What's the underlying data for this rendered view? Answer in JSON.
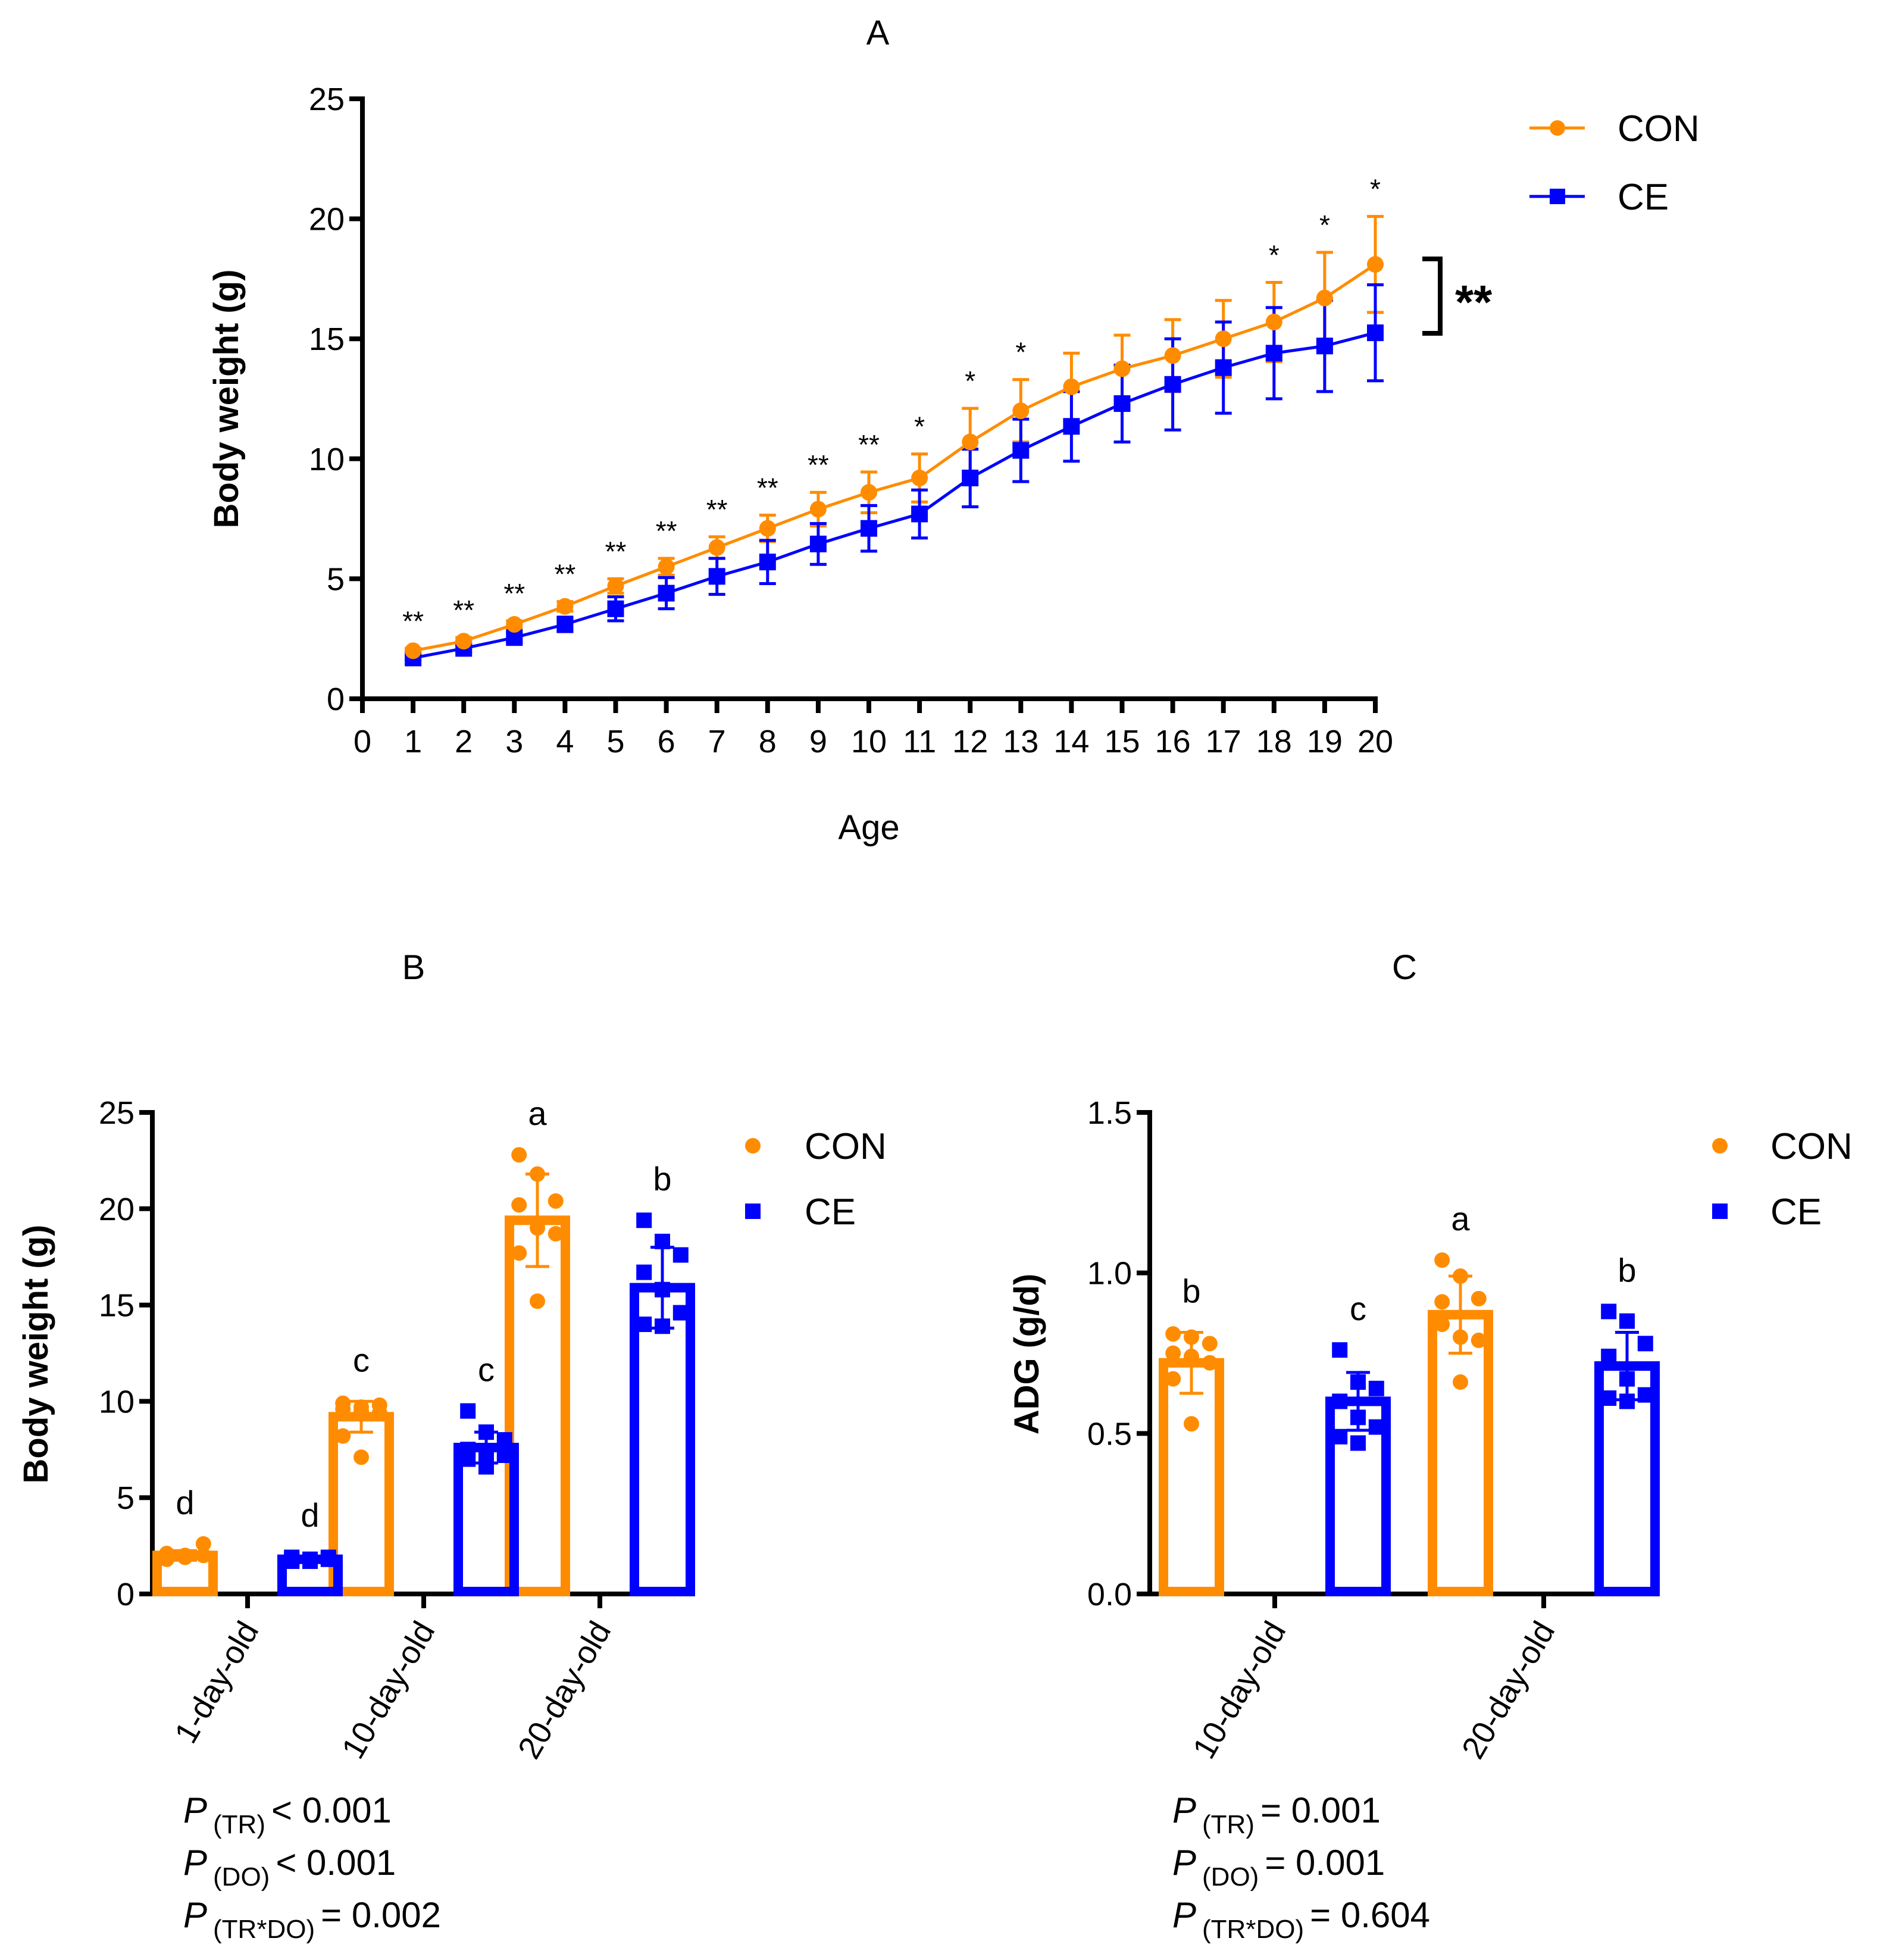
{
  "colors": {
    "CON": "#FF8C00",
    "CE": "#0000FF",
    "axis": "#000000"
  },
  "chart_data": [
    {
      "panel": "A",
      "type": "line",
      "title": "A",
      "xlabel": "Age",
      "ylabel": "Body weight (g)",
      "xlim": [
        0,
        20
      ],
      "ylim": [
        0,
        25
      ],
      "x_ticks": [
        0,
        1,
        2,
        3,
        4,
        5,
        6,
        7,
        8,
        9,
        10,
        11,
        12,
        13,
        14,
        15,
        16,
        17,
        18,
        19,
        20
      ],
      "y_ticks": [
        0,
        5,
        10,
        15,
        20,
        25
      ],
      "grid": false,
      "legend": {
        "placement": "top-right",
        "entries": [
          "CON",
          "CE"
        ]
      },
      "x": [
        1,
        2,
        3,
        4,
        5,
        6,
        7,
        8,
        9,
        10,
        11,
        12,
        13,
        14,
        15,
        16,
        17,
        18,
        19,
        20
      ],
      "series": [
        {
          "name": "CON",
          "marker": "circle",
          "values": [
            2.0,
            2.4,
            3.1,
            3.85,
            4.7,
            5.5,
            6.3,
            7.1,
            7.9,
            8.6,
            9.2,
            10.7,
            12.0,
            13.0,
            13.75,
            14.3,
            15.0,
            15.7,
            16.7,
            18.1
          ],
          "error": [
            0.1,
            0.15,
            0.15,
            0.2,
            0.3,
            0.35,
            0.45,
            0.55,
            0.7,
            0.85,
            1.0,
            1.4,
            1.3,
            1.4,
            1.4,
            1.5,
            1.6,
            1.65,
            1.9,
            2.0
          ]
        },
        {
          "name": "CE",
          "marker": "square",
          "values": [
            1.7,
            2.1,
            2.55,
            3.1,
            3.75,
            4.4,
            5.1,
            5.7,
            6.45,
            7.1,
            7.7,
            9.2,
            10.35,
            11.35,
            12.3,
            13.1,
            13.8,
            14.4,
            14.7,
            15.25
          ],
          "error": [
            0.1,
            0.15,
            0.2,
            0.3,
            0.5,
            0.65,
            0.75,
            0.9,
            0.85,
            0.95,
            1.0,
            1.2,
            1.3,
            1.45,
            1.6,
            1.9,
            1.9,
            1.9,
            1.9,
            2.0
          ]
        }
      ],
      "annotations": [
        "**",
        "**",
        "**",
        "**",
        "**",
        "**",
        "**",
        "**",
        "**",
        "**",
        "*",
        "*",
        "*",
        "",
        "",
        "",
        "",
        "*",
        "*",
        "*"
      ],
      "bracket_annotation": "**"
    },
    {
      "panel": "B",
      "type": "bar",
      "title": "B",
      "xlabel": "",
      "ylabel": "Body weight (g)",
      "ylim": [
        0,
        25
      ],
      "y_ticks": [
        0,
        5,
        10,
        15,
        20,
        25
      ],
      "categories": [
        "1-day-old",
        "10-day-old",
        "20-day-old"
      ],
      "legend": {
        "placement": "top-right",
        "entries": [
          "CON",
          "CE"
        ]
      },
      "series": [
        {
          "name": "CON",
          "marker": "circle",
          "values": [
            2.0,
            9.2,
            19.4
          ],
          "error": [
            0.25,
            0.8,
            2.4
          ],
          "letters": [
            "d",
            "c",
            "a"
          ],
          "points": [
            [
              1.8,
              1.9,
              2.0,
              2.1,
              2.0,
              2.6,
              1.9,
              2.0
            ],
            [
              9.9,
              9.7,
              9.8,
              9.6,
              9.5,
              9.4,
              8.2,
              7.1
            ],
            [
              22.8,
              21.8,
              20.4,
              20.2,
              19.0,
              18.7,
              17.7,
              15.2
            ]
          ]
        },
        {
          "name": "CE",
          "marker": "square",
          "values": [
            1.8,
            7.6,
            15.9
          ],
          "error": [
            0.15,
            0.8,
            2.1
          ],
          "letters": [
            "d",
            "c",
            "b"
          ],
          "points": [
            [
              1.7,
              1.8,
              1.9,
              1.8,
              1.7,
              1.8,
              1.9,
              1.7
            ],
            [
              9.5,
              8.4,
              8.0,
              7.5,
              7.3,
              7.2,
              7.0,
              6.6
            ],
            [
              19.4,
              18.3,
              17.6,
              16.7,
              15.8,
              14.6,
              14.0,
              13.9
            ]
          ]
        }
      ],
      "stats": [
        {
          "sub": "(TR)",
          "rel": "< 0.001"
        },
        {
          "sub": "(DO)",
          "rel": "< 0.001"
        },
        {
          "sub": "(TR*DO)",
          "rel": "= 0.002"
        }
      ]
    },
    {
      "panel": "C",
      "type": "bar",
      "title": "C",
      "xlabel": "",
      "ylabel": "ADG (g/d)",
      "ylim": [
        0,
        1.5
      ],
      "y_ticks": [
        "0.0",
        "0.5",
        "1.0",
        "1.5"
      ],
      "categories": [
        "10-day-old",
        "20-day-old"
      ],
      "legend": {
        "placement": "top-right",
        "entries": [
          "CON",
          "CE"
        ]
      },
      "series": [
        {
          "name": "CON",
          "marker": "circle",
          "values": [
            0.72,
            0.87
          ],
          "error": [
            0.095,
            0.12
          ],
          "letters": [
            "b",
            "a"
          ],
          "points": [
            [
              0.81,
              0.8,
              0.78,
              0.75,
              0.74,
              0.72,
              0.67,
              0.53
            ],
            [
              1.04,
              0.99,
              0.92,
              0.91,
              0.8,
              0.79,
              0.84,
              0.66
            ]
          ]
        },
        {
          "name": "CE",
          "marker": "square",
          "values": [
            0.6,
            0.71
          ],
          "error": [
            0.09,
            0.105
          ],
          "letters": [
            "c",
            "b"
          ],
          "points": [
            [
              0.76,
              0.66,
              0.64,
              0.6,
              0.55,
              0.52,
              0.49,
              0.47
            ],
            [
              0.88,
              0.85,
              0.78,
              0.74,
              0.67,
              0.62,
              0.61,
              0.6
            ]
          ]
        }
      ],
      "stats": [
        {
          "sub": "(TR)",
          "rel": "= 0.001"
        },
        {
          "sub": "(DO)",
          "rel": "= 0.001"
        },
        {
          "sub": "(TR*DO)",
          "rel": "= 0.604"
        }
      ]
    }
  ],
  "stat_prefix": "P"
}
